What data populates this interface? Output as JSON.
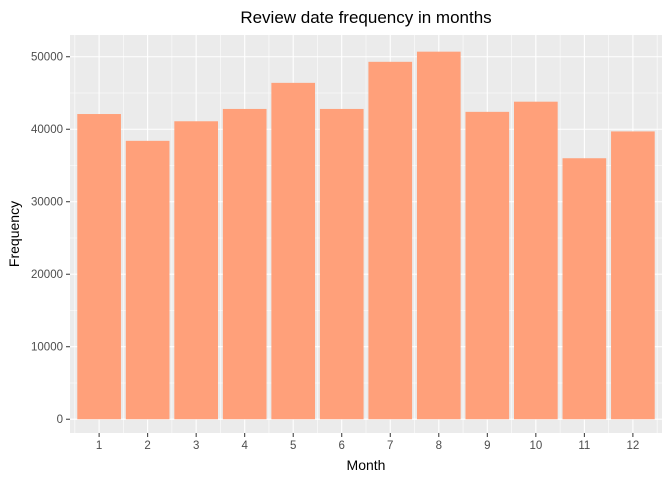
{
  "chart_data": {
    "type": "bar",
    "title": "Review date frequency in months",
    "xlabel": "Month",
    "ylabel": "Frequency",
    "categories": [
      "1",
      "2",
      "3",
      "4",
      "5",
      "6",
      "7",
      "8",
      "9",
      "10",
      "11",
      "12"
    ],
    "values": [
      42100,
      38400,
      41100,
      42800,
      46400,
      42800,
      49300,
      50700,
      42400,
      43800,
      36000,
      39700
    ],
    "ylim": [
      -1900,
      53000
    ],
    "yticks": [
      0,
      10000,
      20000,
      30000,
      40000,
      50000
    ],
    "ytick_labels": [
      "0",
      "10000",
      "20000",
      "30000",
      "40000",
      "50000"
    ],
    "grid": true,
    "legend": "none",
    "colors": {
      "bar": "#FFA07A",
      "panel": "#EBEBEB",
      "grid_major": "#FFFFFF",
      "tick": "#333333"
    }
  }
}
